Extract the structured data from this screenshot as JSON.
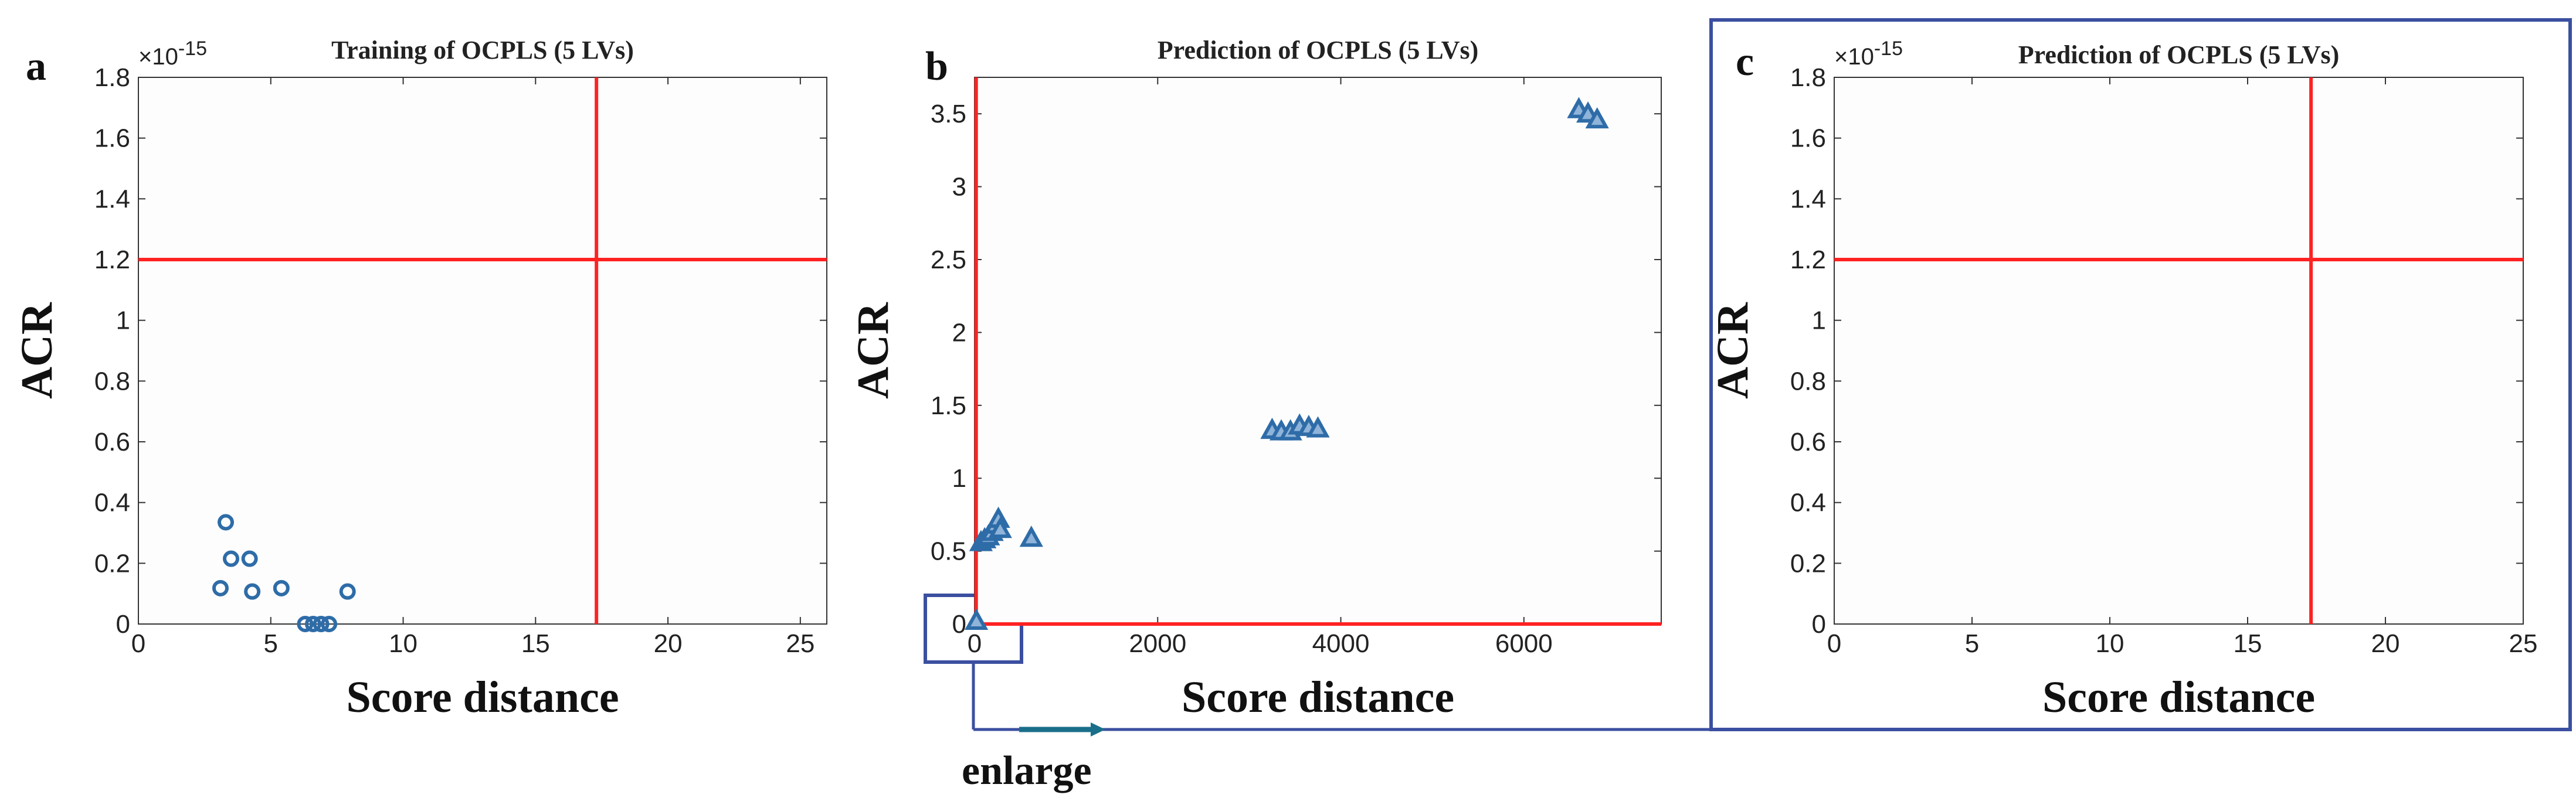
{
  "panels": [
    {
      "label": "a"
    },
    {
      "label": "b"
    },
    {
      "label": "c"
    }
  ],
  "annotation": {
    "enlarge_text": "enlarge"
  },
  "colors": {
    "limit_line": "#ff2222",
    "marker": "#2e6ca8",
    "frame": "#3b4fa0",
    "arrow": "#1a6f8a"
  },
  "chart_data": [
    {
      "type": "scatter",
      "title": "Training of OCPLS (5 LVs)",
      "xlabel": "Score distance",
      "ylabel": "ACR",
      "y_multiplier": "×10-15",
      "y_multiplier_base": "×10",
      "y_multiplier_exp": "-15",
      "xlim": [
        0,
        26
      ],
      "ylim": [
        0,
        1.8
      ],
      "xticks": [
        "0",
        "5",
        "10",
        "15",
        "20",
        "25"
      ],
      "yticks": [
        "0",
        "0.2",
        "0.4",
        "0.6",
        "0.8",
        "1",
        "1.2",
        "1.4",
        "1.6",
        "1.8"
      ],
      "marker": "circle",
      "limits": {
        "x": 17.3,
        "y": 1.2
      },
      "points": [
        {
          "x": 3.3,
          "y": 0.335
        },
        {
          "x": 3.5,
          "y": 0.215
        },
        {
          "x": 4.2,
          "y": 0.215
        },
        {
          "x": 3.1,
          "y": 0.118
        },
        {
          "x": 4.3,
          "y": 0.107
        },
        {
          "x": 5.4,
          "y": 0.118
        },
        {
          "x": 7.9,
          "y": 0.107
        },
        {
          "x": 6.3,
          "y": 0.0
        },
        {
          "x": 6.6,
          "y": 0.0
        },
        {
          "x": 6.9,
          "y": 0.0
        },
        {
          "x": 7.2,
          "y": 0.0
        }
      ]
    },
    {
      "type": "scatter",
      "title": "Prediction of OCPLS (5 LVs)",
      "xlabel": "Score distance",
      "ylabel": "ACR",
      "xlim": [
        0,
        7500
      ],
      "ylim": [
        0,
        3.75
      ],
      "xticks": [
        "0",
        "2000",
        "4000",
        "6000"
      ],
      "yticks": [
        "0",
        "0.5",
        "1",
        "1.5",
        "2",
        "2.5",
        "3",
        "3.5"
      ],
      "marker": "triangle",
      "limits": {
        "x": 17.3,
        "y": 1.2e-15
      },
      "points": [
        {
          "x": 20,
          "y": 0.02
        },
        {
          "x": 70,
          "y": 0.56
        },
        {
          "x": 110,
          "y": 0.58
        },
        {
          "x": 150,
          "y": 0.6
        },
        {
          "x": 190,
          "y": 0.63
        },
        {
          "x": 230,
          "y": 0.68
        },
        {
          "x": 260,
          "y": 0.72
        },
        {
          "x": 280,
          "y": 0.65
        },
        {
          "x": 620,
          "y": 0.59
        },
        {
          "x": 3250,
          "y": 1.33
        },
        {
          "x": 3350,
          "y": 1.32
        },
        {
          "x": 3450,
          "y": 1.32
        },
        {
          "x": 3550,
          "y": 1.36
        },
        {
          "x": 3650,
          "y": 1.35
        },
        {
          "x": 3750,
          "y": 1.34
        },
        {
          "x": 6600,
          "y": 3.53
        },
        {
          "x": 6700,
          "y": 3.5
        },
        {
          "x": 6800,
          "y": 3.46
        }
      ]
    },
    {
      "type": "scatter",
      "title": "Prediction of OCPLS (5 LVs)",
      "xlabel": "Score distance",
      "ylabel": "ACR",
      "y_multiplier": "×10-15",
      "y_multiplier_base": "×10",
      "y_multiplier_exp": "-15",
      "xlim": [
        0,
        25
      ],
      "ylim": [
        0,
        1.8
      ],
      "xticks": [
        "0",
        "5",
        "10",
        "15",
        "20",
        "25"
      ],
      "yticks": [
        "0",
        "0.2",
        "0.4",
        "0.6",
        "0.8",
        "1",
        "1.2",
        "1.4",
        "1.6",
        "1.8"
      ],
      "marker": "triangle",
      "limits": {
        "x": 17.3,
        "y": 1.2
      },
      "points": []
    }
  ]
}
